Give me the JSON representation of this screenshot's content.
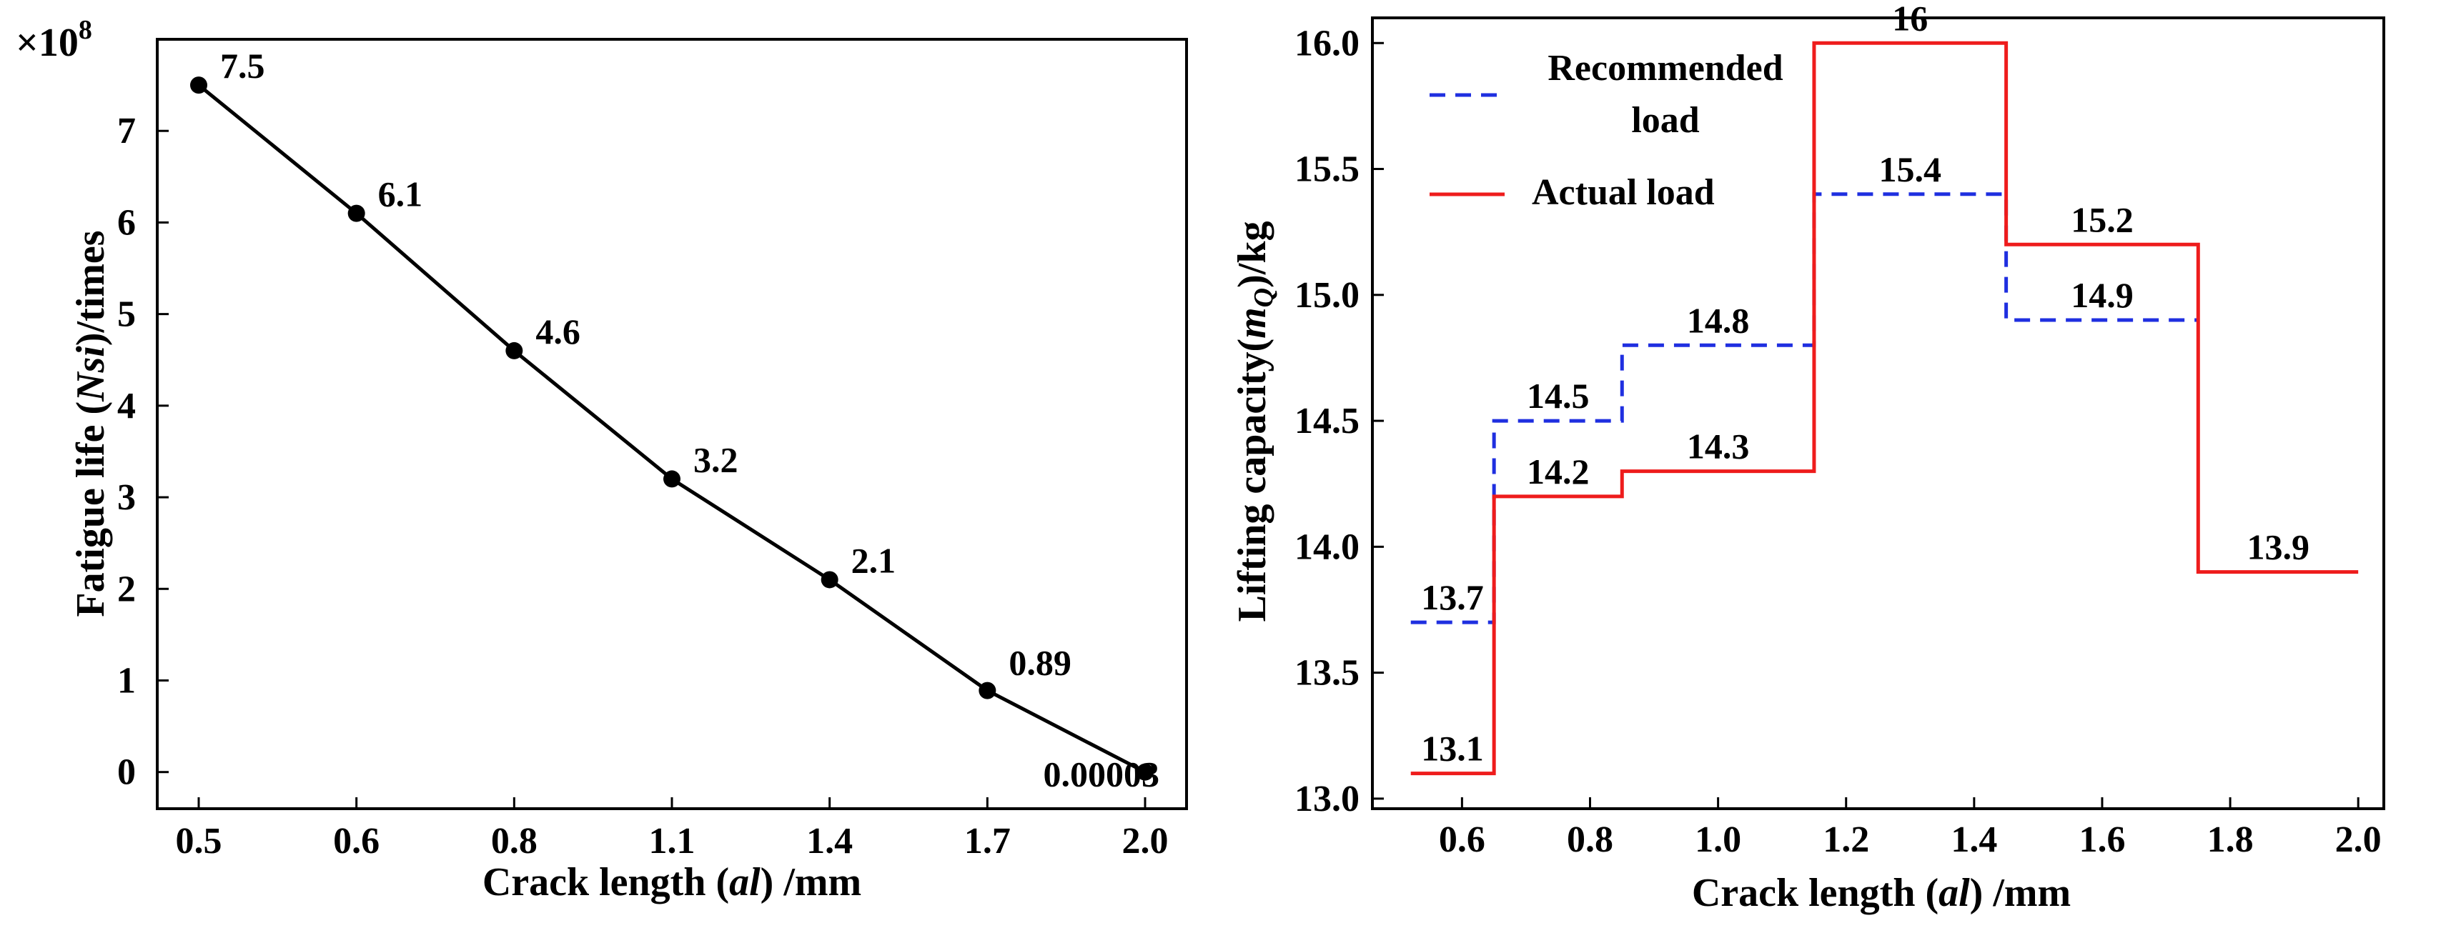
{
  "chart_data": [
    {
      "type": "line",
      "x_ticks": [
        "0.5",
        "0.6",
        "0.8",
        "1.1",
        "1.4",
        "1.7",
        "2.0"
      ],
      "y_ticks": [
        "0",
        "1",
        "2",
        "3",
        "4",
        "5",
        "6",
        "7"
      ],
      "ylim": [
        -0.4,
        8.0
      ],
      "values": [
        7.5,
        6.1,
        4.6,
        3.2,
        2.1,
        0.89,
        3e-05
      ],
      "point_labels": [
        "7.5",
        "6.1",
        "4.6",
        "3.2",
        "2.1",
        "0.89",
        "0.00003"
      ],
      "multiplier": "×10",
      "multiplier_exponent": "8",
      "xlabel": {
        "pre": "Crack length (",
        "var": "al",
        "post": ") /mm"
      },
      "ylabel": {
        "pre": "Fatigue life (",
        "var": "Nsi",
        "post": ")/times"
      }
    },
    {
      "type": "step",
      "xlim": [
        0.46,
        2.04
      ],
      "ylim": [
        12.96,
        16.1
      ],
      "x_ticks": [
        "0.6",
        "0.8",
        "1.0",
        "1.2",
        "1.4",
        "1.6",
        "1.8",
        "2.0"
      ],
      "y_ticks": [
        "13.0",
        "13.5",
        "14.0",
        "14.5",
        "15.0",
        "15.5",
        "16.0"
      ],
      "series": [
        {
          "name_line1": "Recommended",
          "name_line2": "load",
          "color": "#1f2fe0",
          "dashed": true,
          "segments": [
            {
              "x0": 0.52,
              "x1": 0.65,
              "y": 13.7,
              "label": "13.7"
            },
            {
              "x0": 0.65,
              "x1": 0.85,
              "y": 14.5,
              "label": "14.5"
            },
            {
              "x0": 0.85,
              "x1": 1.15,
              "y": 14.8,
              "label": "14.8"
            },
            {
              "x0": 1.15,
              "x1": 1.45,
              "y": 15.4,
              "label": "15.4"
            },
            {
              "x0": 1.45,
              "x1": 1.75,
              "y": 14.9,
              "label": "14.9"
            }
          ]
        },
        {
          "name_line1": "Actual load",
          "name_line2": "",
          "color": "#ee1c1c",
          "dashed": false,
          "segments": [
            {
              "x0": 0.52,
              "x1": 0.65,
              "y": 13.1,
              "label": "13.1"
            },
            {
              "x0": 0.65,
              "x1": 0.85,
              "y": 14.2,
              "label": "14.2"
            },
            {
              "x0": 0.85,
              "x1": 1.15,
              "y": 14.3,
              "label": "14.3"
            },
            {
              "x0": 1.15,
              "x1": 1.45,
              "y": 16.0,
              "label": "16"
            },
            {
              "x0": 1.45,
              "x1": 1.75,
              "y": 15.2,
              "label": "15.2"
            },
            {
              "x0": 1.75,
              "x1": 2.0,
              "y": 13.9,
              "label": "13.9"
            }
          ]
        }
      ],
      "xlabel": {
        "pre": "Crack length (",
        "var": "al",
        "post": ") /mm"
      },
      "ylabel": {
        "pre": "Lifting capacity(",
        "var": "m",
        "sub": "Q",
        "post": ")/kg"
      }
    }
  ]
}
